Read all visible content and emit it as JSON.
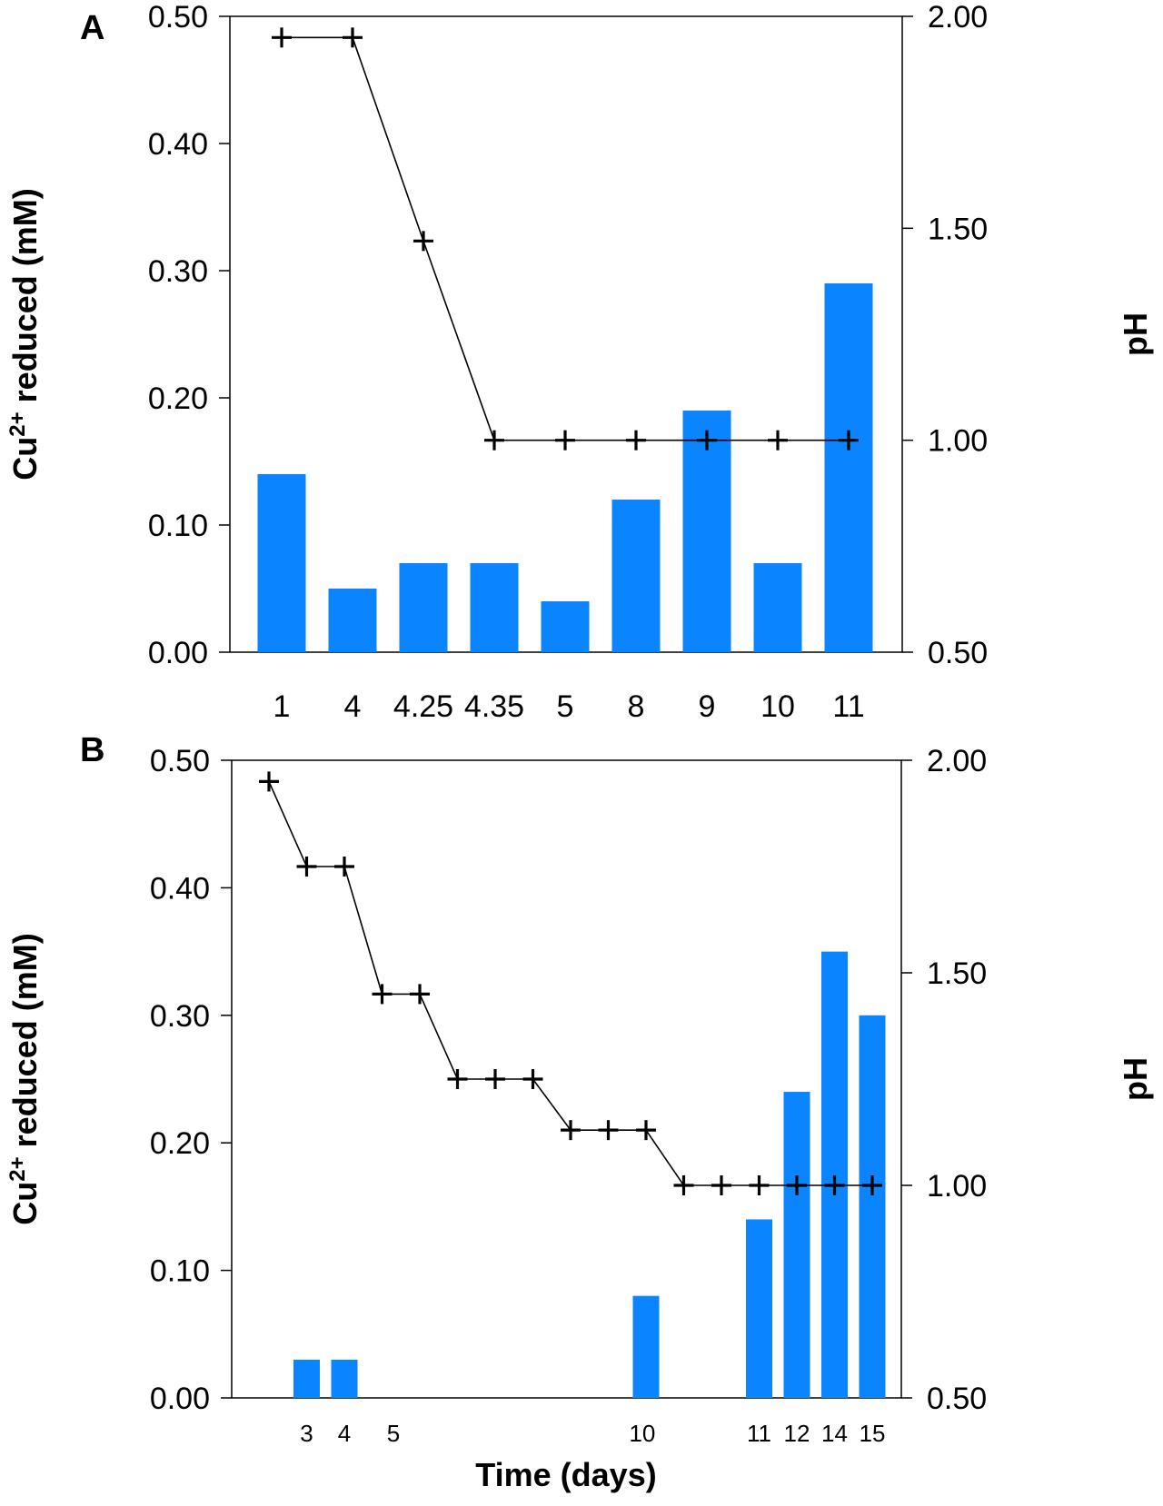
{
  "chart_data": [
    {
      "type": "bar+line",
      "panel": "A",
      "ylabel": "Cu2+ reduced (mM)",
      "ylabel_parts": {
        "base": "Cu",
        "sup": "2+",
        "rest": " reduced (mM)"
      },
      "y2label": "pH",
      "xlabel": "",
      "ylim": [
        0,
        0.5
      ],
      "y2lim": [
        0.5,
        2.0
      ],
      "yticks": [
        "0.00",
        "0.10",
        "0.20",
        "0.30",
        "0.40",
        "0.50"
      ],
      "y2ticks": [
        "0.50",
        "1.00",
        "1.50",
        "2.00"
      ],
      "categories": [
        "1",
        "4",
        "4.25",
        "4.35",
        "5",
        "8",
        "9",
        "10",
        "11"
      ],
      "series": [
        {
          "name": "Cu2+ reduced",
          "type": "bar",
          "axis": "left",
          "values": [
            0.14,
            0.05,
            0.07,
            0.07,
            0.04,
            0.12,
            0.19,
            0.07,
            0.29
          ]
        },
        {
          "name": "pH",
          "type": "line",
          "axis": "right",
          "values": [
            1.95,
            1.95,
            1.47,
            1.0,
            1.0,
            1.0,
            1.0,
            1.0,
            1.0
          ]
        }
      ],
      "grid": false
    },
    {
      "type": "bar+line",
      "panel": "B",
      "ylabel": "Cu2+ reduced (mM)",
      "ylabel_parts": {
        "base": "Cu",
        "sup": "2+",
        "rest": " reduced (mM)"
      },
      "y2label": "pH",
      "xlabel": "Time (days)",
      "ylim": [
        0,
        0.5
      ],
      "y2lim": [
        0.5,
        2.0
      ],
      "yticks": [
        "0.00",
        "0.10",
        "0.20",
        "0.30",
        "0.40",
        "0.50"
      ],
      "y2ticks": [
        "0.50",
        "1.00",
        "1.50",
        "2.00"
      ],
      "x": [
        1,
        2,
        3,
        4,
        5,
        6,
        7,
        8,
        9,
        10,
        11,
        12,
        13,
        14,
        15,
        16,
        17
      ],
      "xticks": [
        {
          "slot": 2,
          "label": "3"
        },
        {
          "slot": 3,
          "label": "4"
        },
        {
          "slot": 4.3,
          "label": "5"
        },
        {
          "slot": 10.9,
          "label": "10"
        },
        {
          "slot": 14,
          "label": "11"
        },
        {
          "slot": 15,
          "label": "12"
        },
        {
          "slot": 16,
          "label": "14"
        },
        {
          "slot": 17,
          "label": "15"
        }
      ],
      "series": [
        {
          "name": "Cu2+ reduced",
          "type": "bar",
          "axis": "left",
          "points": [
            {
              "slot": 2,
              "value": 0.03
            },
            {
              "slot": 3,
              "value": 0.03
            },
            {
              "slot": 11,
              "value": 0.08
            },
            {
              "slot": 14,
              "value": 0.14
            },
            {
              "slot": 15,
              "value": 0.24
            },
            {
              "slot": 16,
              "value": 0.35
            },
            {
              "slot": 17,
              "value": 0.3
            }
          ]
        },
        {
          "name": "pH",
          "type": "line",
          "axis": "right",
          "points": [
            {
              "slot": 1,
              "value": 1.95
            },
            {
              "slot": 2,
              "value": 1.75
            },
            {
              "slot": 3,
              "value": 1.75
            },
            {
              "slot": 4,
              "value": 1.45
            },
            {
              "slot": 5,
              "value": 1.45
            },
            {
              "slot": 6,
              "value": 1.25
            },
            {
              "slot": 7,
              "value": 1.25
            },
            {
              "slot": 8,
              "value": 1.25
            },
            {
              "slot": 9,
              "value": 1.13
            },
            {
              "slot": 10,
              "value": 1.13
            },
            {
              "slot": 11,
              "value": 1.13
            },
            {
              "slot": 12,
              "value": 1.0
            },
            {
              "slot": 13,
              "value": 1.0
            },
            {
              "slot": 14,
              "value": 1.0
            },
            {
              "slot": 15,
              "value": 1.0
            },
            {
              "slot": 16,
              "value": 1.0
            },
            {
              "slot": 17,
              "value": 1.0
            }
          ]
        }
      ],
      "grid": false
    }
  ]
}
